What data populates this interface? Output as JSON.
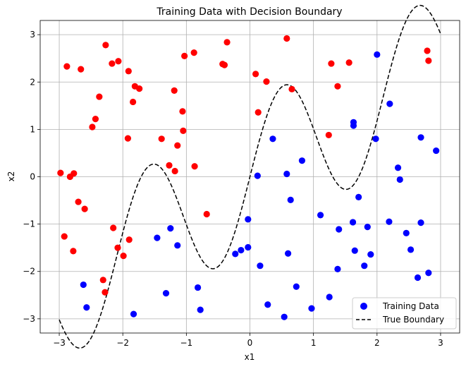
{
  "chart_data": {
    "type": "scatter",
    "title": "Training Data with Decision Boundary",
    "xlabel": "x1",
    "ylabel": "x2",
    "xlim": [
      -3.3,
      3.3
    ],
    "ylim": [
      -3.3,
      3.3
    ],
    "xticks": [
      -3,
      -2,
      -1,
      0,
      1,
      2,
      3
    ],
    "yticks": [
      -3,
      -2,
      -1,
      0,
      1,
      2,
      3
    ],
    "grid": true,
    "legend_position": "lower-right",
    "legend": [
      {
        "label": "Training Data",
        "marker": "circle",
        "color": "#0000ff"
      },
      {
        "label": "True Boundary",
        "marker": "dashed-line",
        "color": "#000000"
      }
    ],
    "colors": {
      "class_above": "#ff0000",
      "class_below": "#0000ff",
      "boundary": "#000000"
    },
    "series": [
      {
        "class": "above",
        "color": "#ff0000",
        "points": [
          [
            -2.98,
            0.08
          ],
          [
            -2.92,
            -1.26
          ],
          [
            -2.88,
            2.33
          ],
          [
            -2.83,
            0.0
          ],
          [
            -2.77,
            0.07
          ],
          [
            -2.78,
            -1.57
          ],
          [
            -2.7,
            -0.53
          ],
          [
            -2.66,
            2.27
          ],
          [
            -2.6,
            -0.68
          ],
          [
            -2.48,
            1.05
          ],
          [
            -2.43,
            1.22
          ],
          [
            -2.37,
            1.69
          ],
          [
            -2.31,
            -2.18
          ],
          [
            -2.28,
            -2.44
          ],
          [
            -2.27,
            2.78
          ],
          [
            -2.17,
            2.39
          ],
          [
            -2.15,
            -1.08
          ],
          [
            -2.07,
            2.44
          ],
          [
            -2.08,
            -1.5
          ],
          [
            -1.99,
            -1.67
          ],
          [
            -1.92,
            0.81
          ],
          [
            -1.91,
            2.23
          ],
          [
            -1.9,
            -1.33
          ],
          [
            -1.84,
            1.58
          ],
          [
            -1.81,
            1.91
          ],
          [
            -1.74,
            1.86
          ],
          [
            -1.39,
            0.8
          ],
          [
            -1.27,
            0.24
          ],
          [
            -1.19,
            1.82
          ],
          [
            -1.18,
            0.12
          ],
          [
            -1.14,
            0.66
          ],
          [
            -1.06,
            1.38
          ],
          [
            -1.05,
            0.97
          ],
          [
            -1.03,
            2.55
          ],
          [
            -0.88,
            2.62
          ],
          [
            -0.87,
            0.22
          ],
          [
            -0.68,
            -0.79
          ],
          [
            -0.43,
            2.38
          ],
          [
            -0.4,
            2.36
          ],
          [
            -0.36,
            2.84
          ],
          [
            0.09,
            2.17
          ],
          [
            0.13,
            1.36
          ],
          [
            0.26,
            2.01
          ],
          [
            0.58,
            2.92
          ],
          [
            0.66,
            1.85
          ],
          [
            1.24,
            0.88
          ],
          [
            1.28,
            2.39
          ],
          [
            1.38,
            1.91
          ],
          [
            1.56,
            2.41
          ],
          [
            2.79,
            2.66
          ],
          [
            2.81,
            2.45
          ]
        ]
      },
      {
        "class": "below",
        "color": "#0000ff",
        "points": [
          [
            -2.62,
            -2.28
          ],
          [
            -2.57,
            -2.76
          ],
          [
            -1.83,
            -2.9
          ],
          [
            -1.46,
            -1.29
          ],
          [
            -1.32,
            -2.46
          ],
          [
            -1.25,
            -1.09
          ],
          [
            -1.14,
            -1.45
          ],
          [
            -0.82,
            -2.34
          ],
          [
            -0.78,
            -2.81
          ],
          [
            -0.23,
            -1.63
          ],
          [
            -0.14,
            -1.55
          ],
          [
            -0.03,
            -0.9
          ],
          [
            -0.03,
            -1.49
          ],
          [
            0.12,
            0.02
          ],
          [
            0.16,
            -1.88
          ],
          [
            0.28,
            -2.7
          ],
          [
            0.36,
            0.8
          ],
          [
            0.54,
            -2.96
          ],
          [
            0.58,
            0.06
          ],
          [
            0.6,
            -1.62
          ],
          [
            0.64,
            -0.49
          ],
          [
            0.73,
            -2.32
          ],
          [
            0.82,
            0.34
          ],
          [
            0.97,
            -2.78
          ],
          [
            1.11,
            -0.81
          ],
          [
            1.25,
            -2.54
          ],
          [
            1.38,
            -1.95
          ],
          [
            1.4,
            -1.11
          ],
          [
            1.62,
            -0.96
          ],
          [
            1.63,
            1.15
          ],
          [
            1.63,
            1.08
          ],
          [
            1.65,
            -1.56
          ],
          [
            1.71,
            -0.43
          ],
          [
            1.8,
            -1.88
          ],
          [
            1.85,
            -1.06
          ],
          [
            1.9,
            -1.64
          ],
          [
            1.98,
            0.8
          ],
          [
            2.0,
            2.58
          ],
          [
            2.19,
            -0.95
          ],
          [
            2.2,
            1.54
          ],
          [
            2.33,
            0.19
          ],
          [
            2.36,
            -0.06
          ],
          [
            2.46,
            -1.19
          ],
          [
            2.53,
            -1.54
          ],
          [
            2.64,
            -2.13
          ],
          [
            2.69,
            0.83
          ],
          [
            2.69,
            -0.97
          ],
          [
            2.81,
            -2.03
          ],
          [
            2.93,
            0.55
          ]
        ]
      }
    ],
    "boundary": {
      "style": "dashed",
      "x_range": [
        -3,
        3
      ],
      "formula": "x2 = 0.8*x1 + 1.5*sin(3*x1)"
    }
  }
}
